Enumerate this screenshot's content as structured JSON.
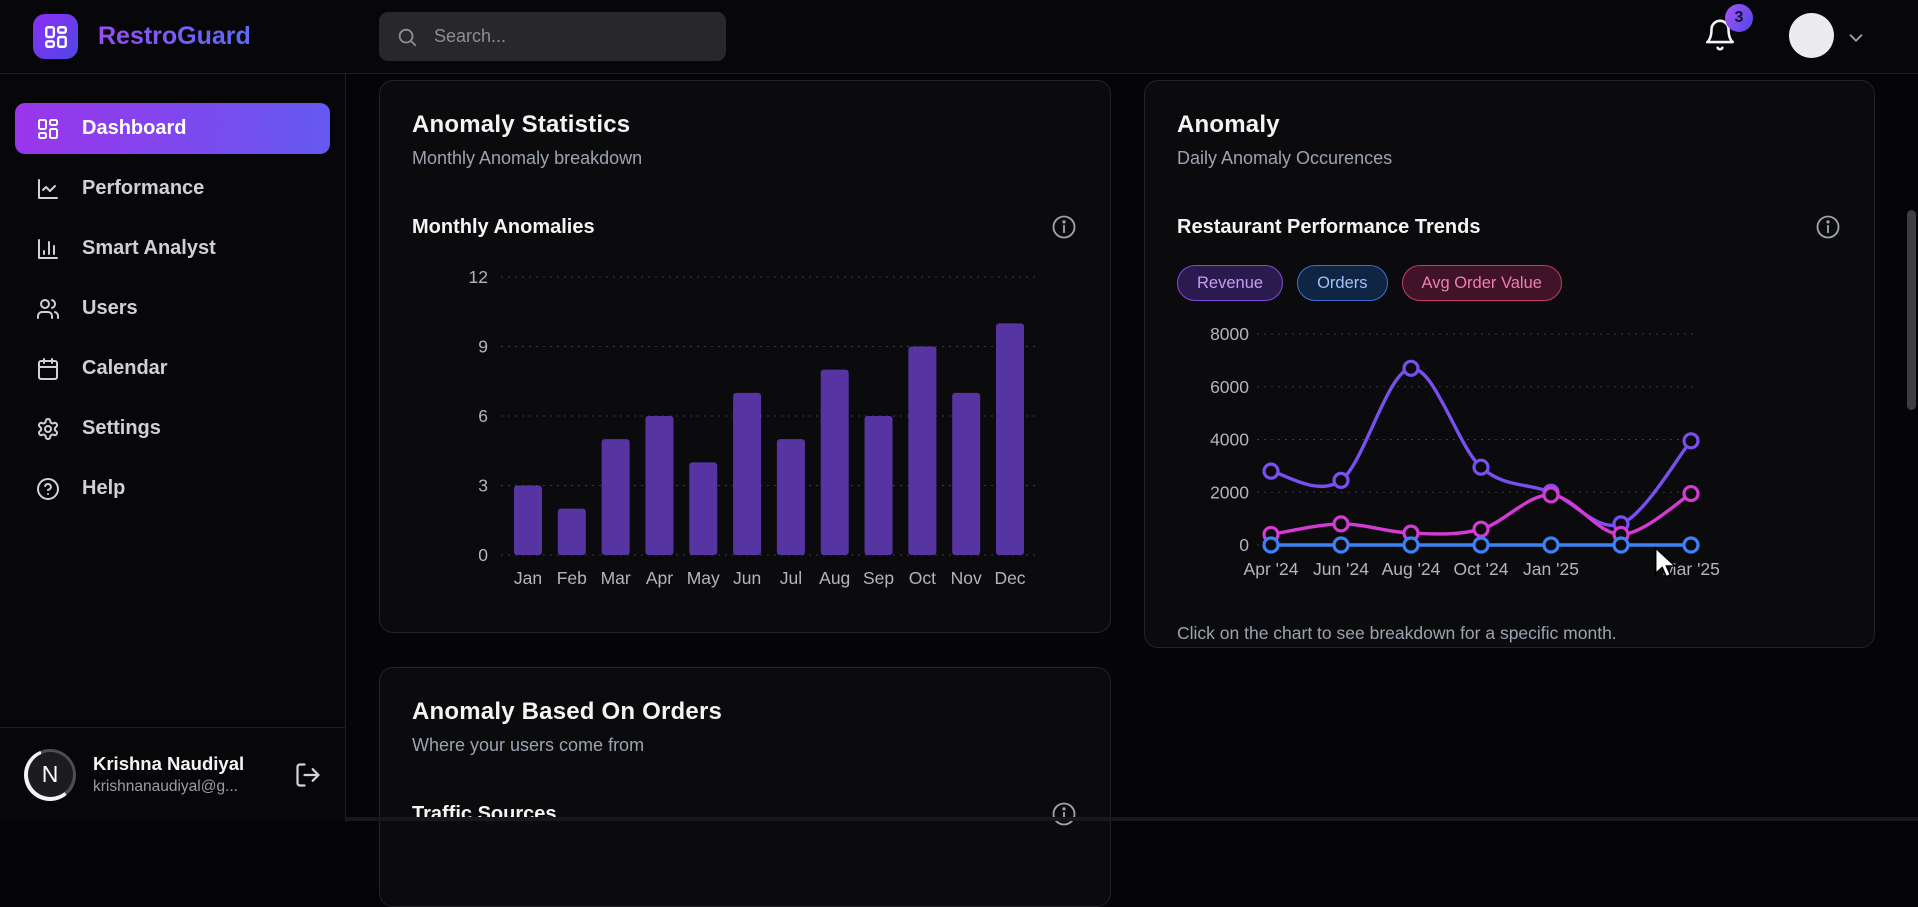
{
  "brand": {
    "name": "RestroGuard"
  },
  "topbar": {
    "search_placeholder": "Search...",
    "notification_count": "3"
  },
  "sidebar": {
    "items": [
      {
        "label": "Dashboard",
        "icon": "dashboard-icon",
        "active": true
      },
      {
        "label": "Performance",
        "icon": "line-chart-icon",
        "active": false
      },
      {
        "label": "Smart Analyst",
        "icon": "bar-chart-icon",
        "active": false
      },
      {
        "label": "Users",
        "icon": "users-icon",
        "active": false
      },
      {
        "label": "Calendar",
        "icon": "calendar-icon",
        "active": false
      },
      {
        "label": "Settings",
        "icon": "gear-icon",
        "active": false
      },
      {
        "label": "Help",
        "icon": "help-icon",
        "active": false
      }
    ],
    "user": {
      "initial": "N",
      "name": "Krishna Naudiyal",
      "email": "krishnanaudiyal@g..."
    }
  },
  "cards": {
    "anomaly_statistics": {
      "title": "Anomaly Statistics",
      "subtitle": "Monthly Anomaly breakdown",
      "chart_title": "Monthly Anomalies"
    },
    "anomaly": {
      "title": "Anomaly",
      "subtitle": "Daily Anomaly Occurences",
      "chart_title": "Restaurant Performance Trends",
      "filters": [
        {
          "label": "Revenue",
          "bg": "#2a1a4d",
          "border": "#8448e0",
          "text": "#c79df2"
        },
        {
          "label": "Orders",
          "bg": "#102444",
          "border": "#3e6fd0",
          "text": "#9ec3f5"
        },
        {
          "label": "Avg Order Value",
          "bg": "#401328",
          "border": "#c23a68",
          "text": "#ef7fae"
        }
      ],
      "footnote": "Click on the chart to see breakdown for a specific month."
    },
    "anomaly_orders": {
      "title": "Anomaly Based On Orders",
      "subtitle": "Where your users come from",
      "chart_title": "Traffic Sources"
    }
  },
  "chart_data": [
    {
      "type": "bar",
      "title": "Monthly Anomalies",
      "categories": [
        "Jan",
        "Feb",
        "Mar",
        "Apr",
        "May",
        "Jun",
        "Jul",
        "Aug",
        "Sep",
        "Oct",
        "Nov",
        "Dec"
      ],
      "values": [
        3,
        2,
        5,
        6,
        4,
        7,
        5,
        8,
        6,
        9,
        7,
        10
      ],
      "xlabel": "",
      "ylabel": "",
      "ylim": [
        0,
        12
      ],
      "yticks": [
        0,
        3,
        6,
        9,
        12
      ],
      "grid": "dashed",
      "bar_color": "#5634a2"
    },
    {
      "type": "line",
      "title": "Restaurant Performance Trends",
      "x_labels": [
        "Apr '24",
        "Jun '24",
        "Aug '24",
        "Oct '24",
        "Jan '25",
        "Mar '25"
      ],
      "label_point_indices": [
        0,
        1,
        2,
        3,
        4,
        6
      ],
      "series": [
        {
          "name": "Revenue",
          "color": "#7a4ff0",
          "values": [
            2800,
            2450,
            6700,
            2950,
            2000,
            800,
            3950
          ]
        },
        {
          "name": "Avg Order Value",
          "color": "#d43ad4",
          "values": [
            400,
            800,
            450,
            600,
            1900,
            400,
            1950
          ]
        },
        {
          "name": "Orders",
          "color": "#3b82f6",
          "values": [
            0,
            0,
            0,
            0,
            0,
            0,
            0
          ]
        }
      ],
      "ylim": [
        0,
        8000
      ],
      "yticks": [
        0,
        2000,
        4000,
        6000,
        8000
      ],
      "grid": "dashed",
      "legend": "none"
    }
  ],
  "colors": {
    "accent_gradient_start": "#9b35ec",
    "accent_gradient_end": "#6459f0",
    "card_bg": "#0b0b0e",
    "page_bg": "#050507"
  }
}
